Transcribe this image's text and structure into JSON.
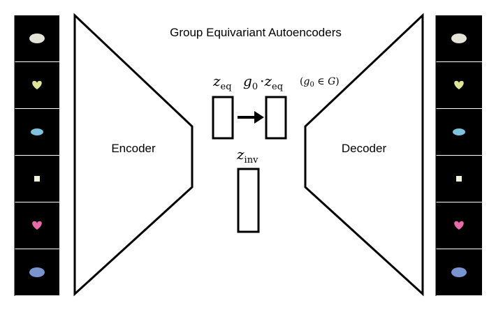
{
  "title": "Group Equivariant Autoencoders",
  "encoder": {
    "label": "Encoder"
  },
  "decoder": {
    "label": "Decoder"
  },
  "latent": {
    "z_eq": {
      "base": "z",
      "sub": "eq"
    },
    "transformed": {
      "g": "g",
      "g_sub": "0",
      "dot": "·",
      "z": "z",
      "z_sub": "eq"
    },
    "z_inv": {
      "base": "z",
      "sub": "inv"
    },
    "condition": {
      "open": "(",
      "g": "g",
      "g_sub": "0",
      "in": " ∈ ",
      "G": "G",
      "close": ")"
    }
  },
  "input_tiles": [
    {
      "shape": "ellipse",
      "color": "#e3e3d8"
    },
    {
      "shape": "heart",
      "color": "#dfe597"
    },
    {
      "shape": "ellipse-small",
      "color": "#7ec2e0"
    },
    {
      "shape": "square",
      "color": "#f1f4d8"
    },
    {
      "shape": "heart",
      "color": "#e86aa8"
    },
    {
      "shape": "ellipse",
      "color": "#7a94cf"
    }
  ],
  "output_tiles": [
    {
      "shape": "ellipse",
      "color": "#e3e3d8"
    },
    {
      "shape": "heart",
      "color": "#dfe597"
    },
    {
      "shape": "ellipse-small",
      "color": "#7ec2e0"
    },
    {
      "shape": "square",
      "color": "#f1f4d8"
    },
    {
      "shape": "heart",
      "color": "#e86aa8"
    },
    {
      "shape": "ellipse",
      "color": "#7a94cf"
    }
  ]
}
